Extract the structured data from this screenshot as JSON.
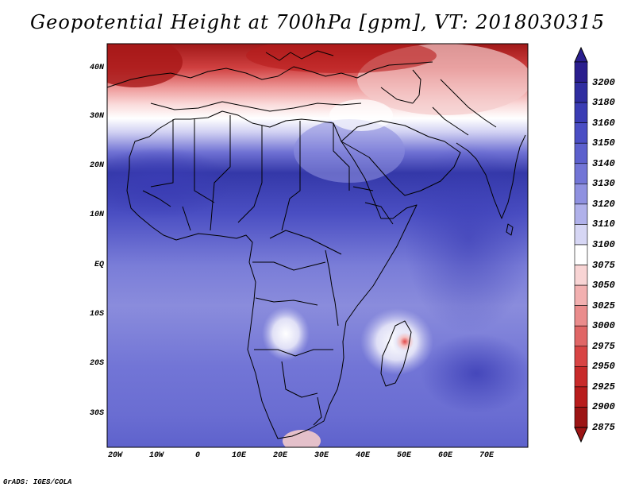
{
  "title": "Geopotential Height at 700hPa [gpm], VT: 2018030315",
  "credit": "GrADS: IGES/COLA",
  "lat_labels": [
    "40N",
    "30N",
    "20N",
    "10N",
    "EQ",
    "10S",
    "20S",
    "30S"
  ],
  "lon_labels": [
    "20W",
    "10W",
    "0",
    "10E",
    "20E",
    "30E",
    "40E",
    "50E",
    "60E",
    "70E"
  ],
  "colorbar": {
    "levels": [
      "3200",
      "3180",
      "3160",
      "3150",
      "3140",
      "3130",
      "3120",
      "3110",
      "3100",
      "3075",
      "3050",
      "3025",
      "3000",
      "2975",
      "2950",
      "2925",
      "2900",
      "2875"
    ],
    "colors": [
      "#2a1e8e",
      "#2f2da0",
      "#3a3cb4",
      "#4a4ec4",
      "#5c60cd",
      "#7275d6",
      "#8f91e0",
      "#b0b1ea",
      "#d6d6f4",
      "#ffffff",
      "#f8d4d4",
      "#f2b0b0",
      "#ea8c8c",
      "#e06666",
      "#d84444",
      "#c82a2a",
      "#b81c1c",
      "#9c1414"
    ]
  },
  "map": {
    "colors": {
      "land_outline": "#000000",
      "high": "#2f2da0",
      "mid": "#6b6fd4",
      "low": "#b22222"
    }
  }
}
